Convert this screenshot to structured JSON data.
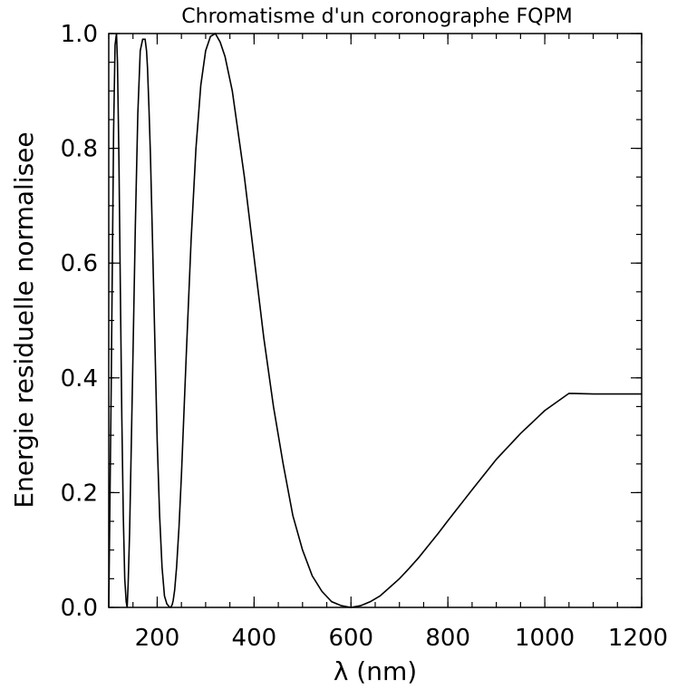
{
  "chart_data": {
    "type": "line",
    "title": "Chromatisme d'un coronographe FQPM",
    "xlabel": "λ (nm)",
    "ylabel": "Energie residuelle normalisee",
    "xlim": [
      100,
      1200
    ],
    "ylim": [
      0.0,
      1.0
    ],
    "xticks": [
      {
        "value": 200,
        "label": "200"
      },
      {
        "value": 400,
        "label": "400"
      },
      {
        "value": 600,
        "label": "600"
      },
      {
        "value": 800,
        "label": "800"
      },
      {
        "value": 1000,
        "label": "1000"
      },
      {
        "value": 1200,
        "label": "1200"
      }
    ],
    "yticks": [
      {
        "value": 0.0,
        "label": "0.0"
      },
      {
        "value": 0.2,
        "label": "0.2"
      },
      {
        "value": 0.4,
        "label": "0.4"
      },
      {
        "value": 0.6,
        "label": "0.6"
      },
      {
        "value": 0.8,
        "label": "0.8"
      },
      {
        "value": 1.0,
        "label": "1.0"
      }
    ],
    "x_minor_step": 50,
    "y_minor_step": 0.05,
    "grid": false,
    "color": "#000000",
    "series": [
      {
        "x": [
          100,
          105,
          110,
          113,
          116,
          118,
          121,
          124,
          127,
          130,
          133,
          136,
          138,
          140,
          143,
          146,
          150,
          155,
          160,
          165,
          170,
          175,
          178,
          180,
          183,
          186,
          190,
          195,
          200,
          205,
          210,
          215,
          220,
          225,
          228,
          231,
          233,
          236,
          240,
          245,
          250,
          260,
          270,
          280,
          290,
          300,
          310,
          320,
          330,
          340,
          350,
          355,
          360,
          370,
          380,
          390,
          400,
          420,
          440,
          460,
          480,
          500,
          520,
          540,
          560,
          580,
          600,
          620,
          640,
          660,
          680,
          700,
          720,
          740,
          760,
          780,
          800,
          850,
          900,
          950,
          1000,
          1050,
          1100,
          1150,
          1200
        ],
        "y": [
          0.0,
          0.38,
          0.83,
          0.98,
          1.0,
          0.95,
          0.78,
          0.55,
          0.33,
          0.16,
          0.05,
          0.01,
          0.0,
          0.04,
          0.13,
          0.26,
          0.44,
          0.67,
          0.86,
          0.97,
          0.99,
          0.99,
          0.97,
          0.94,
          0.87,
          0.79,
          0.65,
          0.47,
          0.29,
          0.16,
          0.07,
          0.02,
          0.006,
          0.001,
          0.0,
          0.005,
          0.012,
          0.03,
          0.07,
          0.14,
          0.23,
          0.44,
          0.64,
          0.8,
          0.91,
          0.97,
          0.995,
          1.0,
          0.985,
          0.96,
          0.92,
          0.9,
          0.87,
          0.81,
          0.75,
          0.68,
          0.61,
          0.47,
          0.35,
          0.25,
          0.16,
          0.1,
          0.055,
          0.028,
          0.01,
          0.003,
          0.0,
          0.003,
          0.01,
          0.02,
          0.035,
          0.05,
          0.068,
          0.087,
          0.108,
          0.129,
          0.151,
          0.205,
          0.258,
          0.303,
          0.343,
          0.373,
          0.372,
          0.372,
          0.372
        ]
      }
    ]
  }
}
